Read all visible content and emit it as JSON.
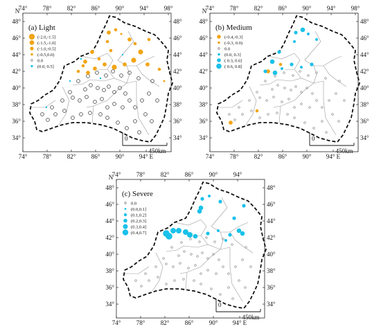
{
  "colors": {
    "decrease": "#f2a516",
    "increase": "#19c1ea",
    "zero": "#8a8a8a",
    "border": "#111111",
    "inner": "#9a9a9a"
  },
  "panels": [
    {
      "key": "a",
      "title": "(a)   Light",
      "top_lon": [
        "74°",
        "78°",
        "82°",
        "86°",
        "90°",
        "94°",
        "98°"
      ],
      "bottom_lon": [
        "74°",
        "78°",
        "82°",
        "86°",
        "90°",
        "94° E"
      ],
      "left_lat": [
        "48°",
        "46°",
        "44°",
        "42°",
        "40°",
        "38°",
        "36°",
        "34°"
      ],
      "right_lat": [
        "48°",
        "46°",
        "44°",
        "42°",
        "40°",
        "38°",
        "36°",
        "34°"
      ],
      "north": "N",
      "scale": {
        "start": "0",
        "end": "450km"
      },
      "legend": [
        "(-2.0,-1.5]",
        "(-1.5,-1.0]",
        "(-1.0,-0.5]",
        "(-0.5,0.0)",
        "0.0",
        "(0.0, 0.5]"
      ]
    },
    {
      "key": "b",
      "title": "(b)   Medium",
      "top_lon": [
        "74°",
        "78°",
        "82°",
        "86°",
        "90°",
        "94°",
        "98°"
      ],
      "bottom_lon": [
        "74°",
        "78°",
        "82°",
        "86°",
        "90°",
        "94° E"
      ],
      "left_lat": [
        "48°",
        "46°",
        "44°",
        "42°",
        "40°",
        "38°",
        "36°",
        "34°"
      ],
      "right_lat": [
        "48°",
        "46°",
        "44°",
        "42°",
        "40°",
        "38°",
        "36°",
        "34°"
      ],
      "north": "N",
      "scale": {
        "start": "0",
        "end": "450km"
      },
      "legend": [
        "(-0.4,-0.3]",
        "(-0.3, 0.0)",
        "0.0",
        "(0.0, 0.3]",
        "( 0.3, 0.6]",
        "( 0.6, 0.8]"
      ]
    },
    {
      "key": "c",
      "title": "(c)  Severe",
      "top_lon": [
        "74°",
        "78°",
        "82°",
        "86°",
        "90°",
        "94°"
      ],
      "bottom_lon": [
        "74°",
        "78°",
        "82°",
        "86°",
        "90°",
        "94° E"
      ],
      "left_lat": [
        "48°",
        "46°",
        "44°",
        "42°",
        "40°",
        "38°",
        "36°",
        "34°"
      ],
      "right_lat": [
        "48°",
        "46°",
        "44°",
        "42°",
        "40°",
        "38°",
        "36°",
        "34°"
      ],
      "north": "N",
      "scale": {
        "start": "0",
        "end": "450km"
      },
      "legend": [
        "0.0",
        "(0.0,0.1]",
        "(0.1,0.2]",
        "(0.2,0.3]",
        "(0.3,0.4]",
        "(0.4,0.7]"
      ]
    }
  ]
}
